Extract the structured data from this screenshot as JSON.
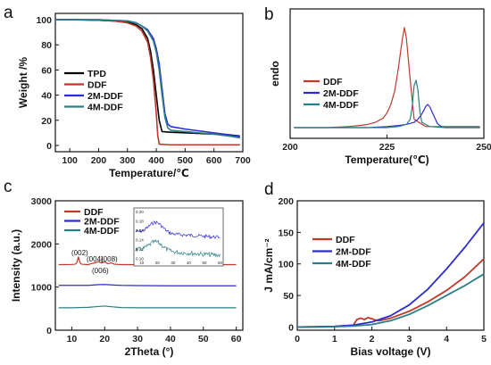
{
  "colors": {
    "TPD": "#000000",
    "DDF": "#c0392b",
    "2M-DDF": "#2b2bd6",
    "4M-DDF": "#2a7f86"
  },
  "chart_data": [
    {
      "panel": "a",
      "type": "line",
      "xlabel": "Temperature/℃",
      "ylabel": "Weight /%",
      "xlim": [
        50,
        700
      ],
      "ylim": [
        -5,
        105
      ],
      "xticks": [
        100,
        200,
        300,
        400,
        500,
        600,
        700
      ],
      "yticks": [
        0,
        20,
        40,
        60,
        80,
        100
      ],
      "legend": "bottom-left",
      "series": [
        {
          "name": "TPD",
          "color": "#000000",
          "x": [
            50,
            100,
            150,
            200,
            250,
            300,
            330,
            350,
            370,
            380,
            390,
            400,
            410,
            420,
            450,
            500,
            550,
            600,
            650,
            690
          ],
          "y": [
            100,
            100,
            99.8,
            99.5,
            99,
            98,
            96,
            93,
            85,
            75,
            60,
            40,
            20,
            11,
            10.5,
            10,
            9.5,
            9,
            8.5,
            7.5
          ]
        },
        {
          "name": "DDF",
          "color": "#c0392b",
          "x": [
            50,
            100,
            150,
            200,
            250,
            300,
            330,
            350,
            370,
            380,
            390,
            400,
            405,
            410,
            450,
            500,
            550,
            600,
            650,
            690
          ],
          "y": [
            100,
            100,
            99.8,
            99.5,
            99,
            97.5,
            95,
            91,
            82,
            70,
            52,
            25,
            8,
            1,
            0.5,
            0.5,
            0.5,
            0.5,
            0.5,
            0.5
          ]
        },
        {
          "name": "2M-DDF",
          "color": "#2b2bd6",
          "x": [
            50,
            100,
            150,
            200,
            250,
            300,
            330,
            350,
            370,
            390,
            400,
            410,
            420,
            430,
            440,
            450,
            500,
            550,
            600,
            650,
            690
          ],
          "y": [
            100,
            100,
            100,
            100,
            99.5,
            99,
            97.5,
            95,
            92,
            85,
            77,
            65,
            45,
            25,
            17,
            15,
            13,
            11.5,
            10,
            8.5,
            7
          ]
        },
        {
          "name": "4M-DDF",
          "color": "#2a7f86",
          "x": [
            50,
            100,
            150,
            200,
            250,
            300,
            330,
            350,
            370,
            390,
            400,
            410,
            420,
            430,
            440,
            450,
            500,
            550,
            600,
            650,
            690
          ],
          "y": [
            100,
            100,
            100,
            100,
            99.5,
            99,
            97.5,
            95,
            91,
            83,
            74,
            60,
            40,
            22,
            14,
            12,
            11,
            10,
            9,
            7.5,
            6
          ]
        }
      ]
    },
    {
      "panel": "b",
      "type": "line",
      "xlabel": "Temperature(℃)",
      "ylabel": "endo",
      "xlim": [
        200,
        250
      ],
      "xticks": [
        200,
        225,
        250
      ],
      "legend": "top-left",
      "series": [
        {
          "name": "DDF",
          "color": "#c0392b",
          "x": [
            201,
            205,
            210,
            215,
            218,
            220,
            222,
            224,
            225,
            226,
            227,
            228,
            228.5,
            229,
            229.5,
            230,
            231,
            232,
            235,
            240,
            245,
            249
          ],
          "y": [
            0,
            0,
            0,
            0.01,
            0.02,
            0.03,
            0.05,
            0.09,
            0.14,
            0.22,
            0.35,
            0.58,
            0.72,
            0.85,
            0.95,
            0.85,
            0.45,
            0.08,
            0.01,
            0.01,
            0.01,
            0.01
          ]
        },
        {
          "name": "2M-DDF",
          "color": "#2b2bd6",
          "x": [
            201,
            210,
            220,
            225,
            228,
            230,
            232,
            233,
            234,
            235,
            235.5,
            236,
            237,
            238,
            239,
            240,
            245,
            249
          ],
          "y": [
            0,
            0,
            0,
            0.01,
            0.02,
            0.03,
            0.05,
            0.08,
            0.13,
            0.2,
            0.22,
            0.2,
            0.12,
            0.04,
            0.01,
            0,
            0,
            0
          ]
        },
        {
          "name": "4M-DDF",
          "color": "#2a7f86",
          "x": [
            201,
            210,
            220,
            225,
            228,
            230,
            231,
            231.5,
            232,
            232.5,
            233,
            233.5,
            234,
            236,
            240,
            245,
            249
          ],
          "y": [
            0,
            0,
            0,
            0,
            0.01,
            0.03,
            0.08,
            0.2,
            0.4,
            0.45,
            0.35,
            0.15,
            0.05,
            0.01,
            0,
            0,
            0
          ]
        }
      ]
    },
    {
      "panel": "c",
      "type": "line",
      "xlabel": "2Theta (°)",
      "ylabel": "Intensity (a.u.)",
      "xlim": [
        5,
        62
      ],
      "ylim": [
        0,
        3000
      ],
      "xticks": [
        10,
        20,
        30,
        40,
        50,
        60
      ],
      "yticks": [
        0,
        1000,
        2000,
        3000
      ],
      "legend": "top-left",
      "annotations": [
        "(002)",
        "(004)",
        "(006)",
        "(008)"
      ],
      "inset": {
        "xticks": [
          10,
          20,
          30,
          40,
          50,
          60
        ],
        "yticks": [
          "0.20",
          "0.18",
          "0.16",
          "0.14",
          "0.12",
          "0.10"
        ]
      },
      "series": [
        {
          "name": "DDF",
          "color": "#c0392b",
          "x": [
            6,
            8,
            10,
            11,
            11.5,
            12,
            12.5,
            13,
            15,
            16,
            17,
            18,
            19,
            20,
            21,
            22,
            23,
            25,
            30,
            40,
            50,
            60
          ],
          "y": [
            1520,
            1520,
            1525,
            1530,
            1560,
            1700,
            1560,
            1530,
            1520,
            1545,
            1560,
            1590,
            1560,
            1585,
            1540,
            1560,
            1530,
            1520,
            1520,
            1520,
            1520,
            1520
          ]
        },
        {
          "name": "2M-DDF",
          "color": "#2b2bd6",
          "x": [
            6,
            10,
            15,
            18,
            20,
            22,
            25,
            30,
            40,
            50,
            60
          ],
          "y": [
            1040,
            1040,
            1040,
            1055,
            1060,
            1050,
            1040,
            1035,
            1030,
            1030,
            1030
          ]
        },
        {
          "name": "4M-DDF",
          "color": "#2a7f86",
          "x": [
            6,
            10,
            15,
            18,
            20,
            22,
            25,
            30,
            40,
            50,
            60
          ],
          "y": [
            520,
            520,
            530,
            550,
            560,
            545,
            525,
            520,
            520,
            520,
            520
          ]
        }
      ]
    },
    {
      "panel": "d",
      "type": "line",
      "xlabel": "Bias voltage (V)",
      "ylabel": "J mA/cm⁻²",
      "xlim": [
        0,
        5
      ],
      "ylim": [
        -5,
        200
      ],
      "xticks": [
        0,
        1,
        2,
        3,
        4,
        5
      ],
      "yticks": [
        0,
        50,
        100,
        150,
        200
      ],
      "legend": "top-left",
      "series": [
        {
          "name": "DDF",
          "color": "#c0392b",
          "x": [
            0,
            0.5,
            1,
            1.5,
            1.6,
            1.7,
            1.8,
            1.9,
            2,
            2.1,
            2.2,
            2.5,
            3,
            3.5,
            4,
            4.5,
            5
          ],
          "y": [
            0,
            0.5,
            1,
            3,
            12,
            14,
            12,
            15,
            13,
            11,
            10,
            14,
            25,
            40,
            58,
            80,
            108
          ]
        },
        {
          "name": "2M-DDF",
          "color": "#2b2bd6",
          "x": [
            0,
            0.5,
            1,
            1.5,
            2,
            2.5,
            3,
            3.5,
            4,
            4.5,
            5
          ],
          "y": [
            0,
            0.5,
            1,
            3,
            8,
            18,
            35,
            60,
            92,
            127,
            165
          ]
        },
        {
          "name": "4M-DDF",
          "color": "#2a7f86",
          "x": [
            0,
            0.5,
            1,
            1.5,
            2,
            2.5,
            3,
            3.5,
            4,
            4.5,
            5
          ],
          "y": [
            0,
            0,
            0.5,
            1.5,
            4,
            10,
            20,
            34,
            50,
            66,
            84
          ]
        }
      ]
    }
  ],
  "panels": {
    "a": {
      "letter": "a"
    },
    "b": {
      "letter": "b"
    },
    "c": {
      "letter": "c"
    },
    "d": {
      "letter": "d"
    }
  }
}
